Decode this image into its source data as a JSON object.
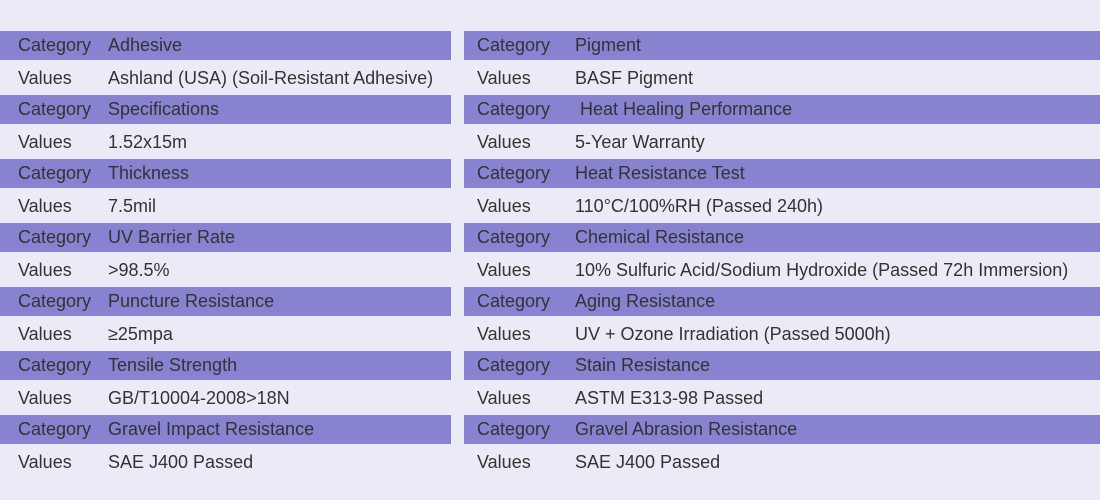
{
  "tables": [
    {
      "rows": [
        [
          "Category",
          "Adhesive"
        ],
        [
          "Values",
          "Ashland (USA) (Soil-Resistant Adhesive)"
        ],
        [
          "Category",
          "Specifications"
        ],
        [
          "Values",
          "1.52x15m"
        ],
        [
          "Category",
          "Thickness"
        ],
        [
          "Values",
          "7.5mil"
        ],
        [
          "Category",
          "UV Barrier Rate"
        ],
        [
          "Values",
          ">98.5%"
        ],
        [
          "Category",
          "Puncture Resistance"
        ],
        [
          "Values",
          "≥25mpa"
        ],
        [
          "Category",
          "Tensile Strength"
        ],
        [
          "Values",
          "GB/T10004-2008>18N"
        ],
        [
          "Category",
          "Gravel Impact Resistance"
        ],
        [
          "Values",
          "SAE J400 Passed"
        ]
      ]
    },
    {
      "rows": [
        [
          "Category",
          "Pigment"
        ],
        [
          "Values",
          "BASF Pigment"
        ],
        [
          "Category",
          " Heat Healing Performance"
        ],
        [
          "Values",
          "5-Year Warranty"
        ],
        [
          "Category",
          "Heat Resistance Test"
        ],
        [
          "Values",
          "110°C/100%RH (Passed 240h)"
        ],
        [
          "Category",
          "Chemical Resistance"
        ],
        [
          "Values",
          "10% Sulfuric Acid/Sodium Hydroxide (Passed 72h Immersion)"
        ],
        [
          "Category",
          "Aging Resistance"
        ],
        [
          "Values",
          "UV + Ozone Irradiation (Passed 5000h)"
        ],
        [
          "Category",
          "Stain Resistance"
        ],
        [
          "Values",
          "ASTM E313-98 Passed"
        ],
        [
          "Category",
          "Gravel Abrasion Resistance"
        ],
        [
          "Values",
          "SAE J400 Passed"
        ]
      ]
    }
  ]
}
